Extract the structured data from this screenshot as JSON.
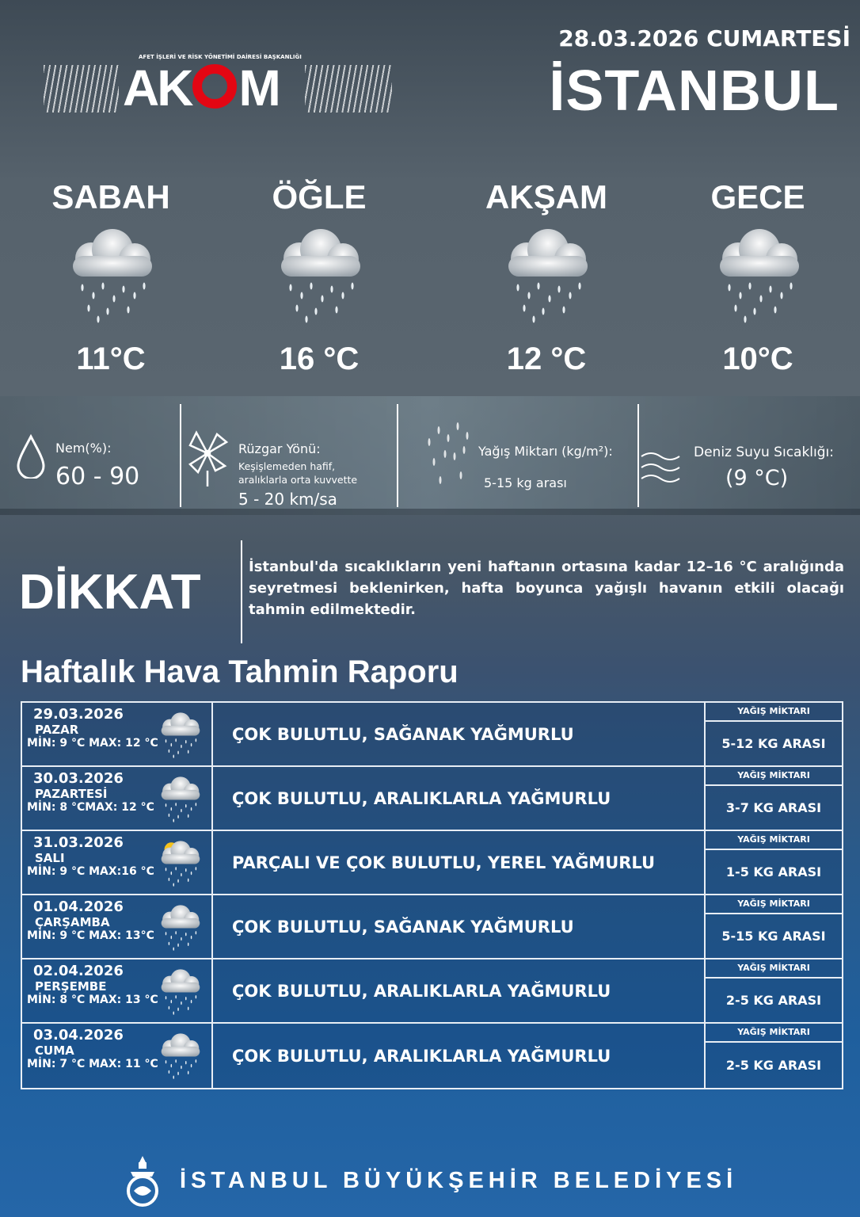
{
  "header": {
    "logo_subtitle": "AFET İŞLERİ VE RİSK YÖNETİMİ DAİRESİ BAŞKANLIĞI",
    "logo_text": "AKOM",
    "date": "28.03.2026 CUMARTESİ",
    "city": "İSTANBUL",
    "accent": "#e30613"
  },
  "periods": [
    {
      "label": "SABAH",
      "temp": "11°C",
      "icon": "cloud-rain-icon"
    },
    {
      "label": "ÖĞLE",
      "temp": "16 °C",
      "icon": "cloud-rain-icon"
    },
    {
      "label": "AKŞAM",
      "temp": "12 °C",
      "icon": "cloud-rain-icon"
    },
    {
      "label": "GECE",
      "temp": "10°C",
      "icon": "cloud-rain-icon"
    }
  ],
  "info": {
    "humidity": {
      "label": "Nem(%):",
      "value": "60 - 90",
      "icon": "droplet-icon"
    },
    "wind": {
      "label": "Rüzgar Yönü:",
      "desc1": "Keşişlemeden hafif,",
      "desc2": "aralıklarla orta kuvvette",
      "value": "5 - 20 km/sa",
      "icon": "pinwheel-icon"
    },
    "rain": {
      "label": "Yağış Miktarı (kg/m²):",
      "value": "5-15 kg arası",
      "icon": "raindrops-icon"
    },
    "sea": {
      "label": "Deniz Suyu Sıcaklığı:",
      "value": "(9 °C)",
      "icon": "waves-icon"
    }
  },
  "alert": {
    "title": "DİKKAT",
    "text": "İstanbul'da sıcaklıkların yeni haftanın ortasına kadar 12–16 °C aralığında seyretmesi beklenirken, hafta boyunca yağışlı havanın etkili olacağı tahmin edilmektedir."
  },
  "weekly": {
    "title": "Haftalık Hava Tahmin Raporu",
    "rain_header": "YAĞIŞ MİKTARI",
    "rows": [
      {
        "date": "29.03.2026",
        "day": "PAZAR",
        "minmax": "MİN: 9 °C MAX: 12 °C",
        "desc": "ÇOK BULUTLU, SAĞANAK YAĞMURLU",
        "rain": "5-12 KG ARASI",
        "icon": "cloud-rain-icon"
      },
      {
        "date": "30.03.2026",
        "day": "PAZARTESİ",
        "minmax": "MİN: 8 °CMAX: 12 °C",
        "desc": "ÇOK BULUTLU, ARALIKLARLA YAĞMURLU",
        "rain": "3-7 KG ARASI",
        "icon": "cloud-rain-icon"
      },
      {
        "date": "31.03.2026",
        "day": "SALI",
        "minmax": "MİN: 9 °C MAX:16 °C",
        "desc": "PARÇALI VE ÇOK BULUTLU, YEREL YAĞMURLU",
        "rain": "1-5 KG ARASI",
        "icon": "sun-cloud-rain-icon"
      },
      {
        "date": "01.04.2026",
        "day": "ÇARŞAMBA",
        "minmax": "MİN: 9 °C MAX: 13°C",
        "desc": "ÇOK BULUTLU, SAĞANAK YAĞMURLU",
        "rain": "5-15 KG ARASI",
        "icon": "cloud-rain-icon"
      },
      {
        "date": "02.04.2026",
        "day": "PERŞEMBE",
        "minmax": "MİN: 8 °C MAX: 13 °C",
        "desc": "ÇOK BULUTLU, ARALIKLARLA YAĞMURLU",
        "rain": "2-5 KG ARASI",
        "icon": "cloud-rain-icon"
      },
      {
        "date": "03.04.2026",
        "day": "CUMA",
        "minmax": "MİN: 7 °C MAX: 11 °C",
        "desc": "ÇOK BULUTLU, ARALIKLARLA YAĞMURLU",
        "rain": "2-5 KG ARASI",
        "icon": "cloud-rain-icon"
      }
    ]
  },
  "footer": {
    "text": "İSTANBUL BÜYÜKŞEHİR BELEDİYESİ",
    "icon": "ibb-logo-icon"
  }
}
